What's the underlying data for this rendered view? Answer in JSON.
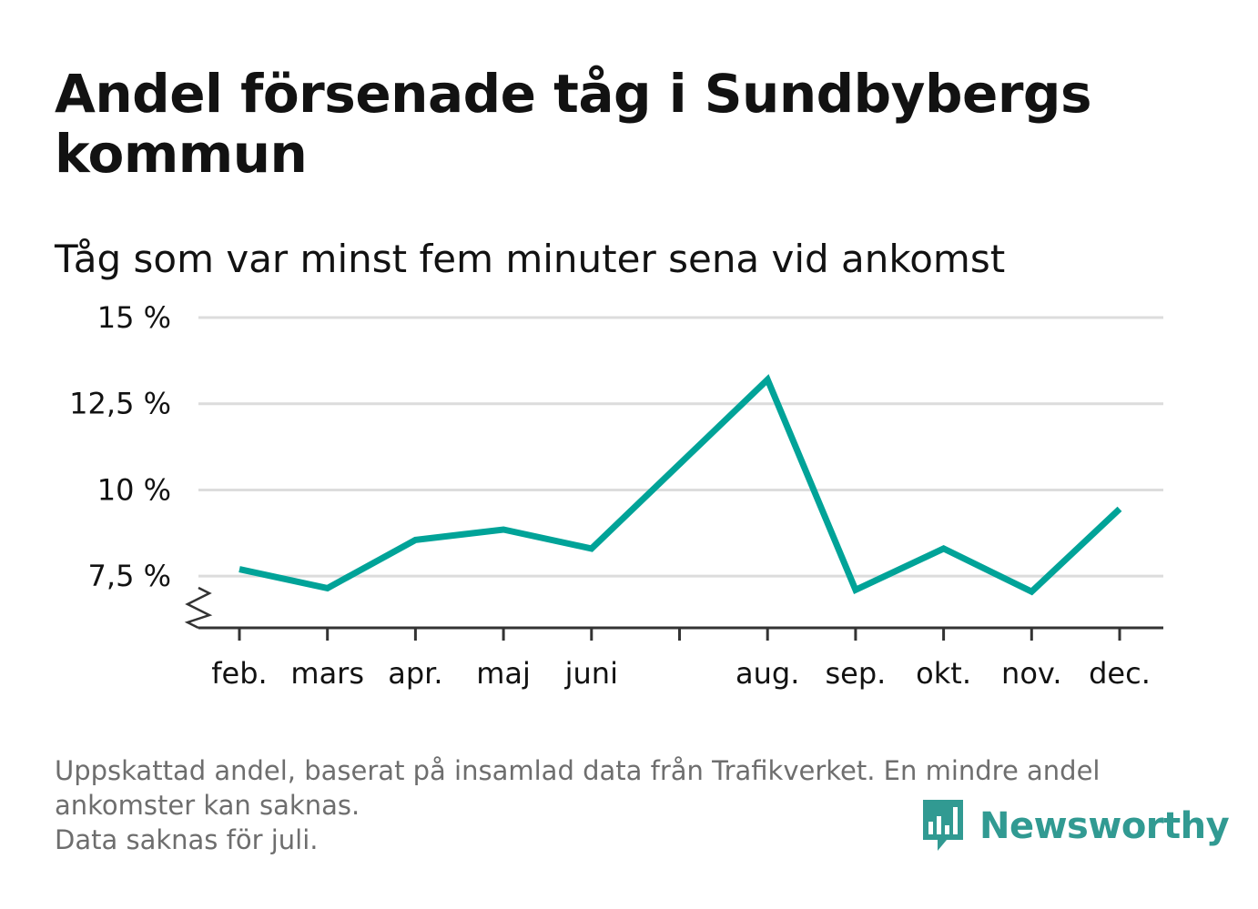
{
  "header": {
    "title": "Andel försenade tåg i Sundbybergs kommun",
    "subtitle": "Tåg som var minst fem minuter sena vid ankomst"
  },
  "footer": {
    "note_line1": "Uppskattad andel, baserat på insamlad data från Trafikverket. En mindre andel ankomster kan saknas.",
    "note_line2": "Data saknas för juli."
  },
  "brand": {
    "name": "Newsworthy",
    "icon": "newsworthy-logo-icon",
    "color": "#319a92"
  },
  "colors": {
    "line": "#00a398",
    "grid": "#dcdcdc",
    "axis": "#333333"
  },
  "chart_data": {
    "type": "line",
    "title": "Andel försenade tåg i Sundbybergs kommun",
    "subtitle": "Tåg som var minst fem minuter sena vid ankomst",
    "xlabel": "",
    "ylabel": "",
    "categories": [
      "feb.",
      "mars",
      "apr.",
      "maj",
      "juni",
      "",
      "aug.",
      "sep.",
      "okt.",
      "nov.",
      "dec."
    ],
    "series": [
      {
        "name": "Andel försenade tåg",
        "values": [
          7.7,
          7.15,
          8.55,
          8.85,
          8.3,
          null,
          13.2,
          7.1,
          8.3,
          7.05,
          9.45
        ]
      }
    ],
    "connect_gaps": true,
    "ylim": [
      6.0,
      15.0
    ],
    "yticks": [
      7.5,
      10,
      12.5,
      15
    ],
    "ytick_labels": [
      "7,5 %",
      "10 %",
      "12,5 %",
      "15 %"
    ],
    "grid": true,
    "axis_break": true,
    "legend": "none"
  }
}
